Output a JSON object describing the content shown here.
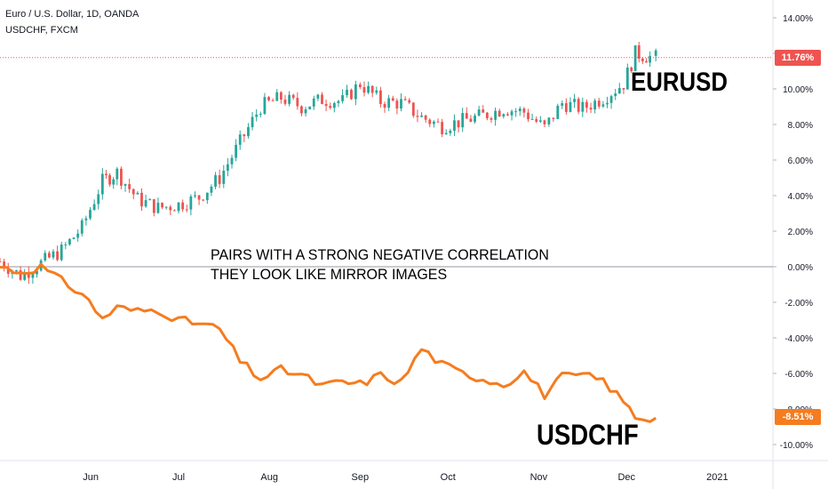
{
  "header": {
    "line1": "Euro / U.S. Dollar, 1D, OANDA",
    "line2": "USDCHF, FXCM"
  },
  "annotations": {
    "eurusd": "EURUSD",
    "usdchf": "USDCHF",
    "caption_line1": "PAIRS WITH A STRONG NEGATIVE CORRELATION",
    "caption_line2": "THEY LOOK LIKE MIRROR IMAGES"
  },
  "price_tags": {
    "eurusd": "11.76%",
    "usdchf": "-8.51%"
  },
  "colors": {
    "up": "#26a69a",
    "down": "#ef5350",
    "usdchf_line": "#f57c1f",
    "eurusd_tag": "#ef5350",
    "usdchf_tag": "#f57c1f",
    "zero_line": "#9598a1"
  },
  "chart_data": {
    "type": "line",
    "title": "Euro / U.S. Dollar, 1D, OANDA",
    "y_unit": "% change",
    "ylim": [
      -11,
      14.5
    ],
    "y_ticks": [
      "14.00%",
      "12.00%",
      "10.00%",
      "8.00%",
      "6.00%",
      "4.00%",
      "2.00%",
      "0.00%",
      "-2.00%",
      "-4.00%",
      "-6.00%",
      "-8.00%",
      "-10.00%"
    ],
    "y_tick_values": [
      14,
      12,
      10,
      8,
      6,
      4,
      2,
      0,
      -2,
      -4,
      -6,
      -8,
      -10
    ],
    "x_ticks": [
      "Jun",
      "Jul",
      "Aug",
      "Sep",
      "Oct",
      "Nov",
      "Dec",
      "2021"
    ],
    "x_tick_dates": [
      "2020-06-01",
      "2020-07-01",
      "2020-08-01",
      "2020-09-01",
      "2020-10-01",
      "2020-11-01",
      "2020-12-01",
      "2021-01-01"
    ],
    "x_range": [
      "2020-05-01",
      "2021-01-20"
    ],
    "grid": false,
    "series": [
      {
        "name": "EURUSD",
        "style": "candlestick",
        "last_value": 11.76,
        "points": [
          [
            "2020-05-01",
            0.3
          ],
          [
            "2020-05-08",
            -0.5
          ],
          [
            "2020-05-15",
            0.2
          ],
          [
            "2020-05-22",
            0.9
          ],
          [
            "2020-05-29",
            2.2
          ],
          [
            "2020-06-05",
            4.8
          ],
          [
            "2020-06-10",
            5.3
          ],
          [
            "2020-06-17",
            3.8
          ],
          [
            "2020-06-24",
            3.3
          ],
          [
            "2020-07-01",
            3.5
          ],
          [
            "2020-07-08",
            3.9
          ],
          [
            "2020-07-15",
            5.0
          ],
          [
            "2020-07-22",
            7.0
          ],
          [
            "2020-07-29",
            9.0
          ],
          [
            "2020-08-05",
            9.5
          ],
          [
            "2020-08-12",
            9.0
          ],
          [
            "2020-08-19",
            9.4
          ],
          [
            "2020-08-26",
            9.3
          ],
          [
            "2020-09-01",
            10.3
          ],
          [
            "2020-09-08",
            9.3
          ],
          [
            "2020-09-15",
            9.2
          ],
          [
            "2020-09-22",
            8.4
          ],
          [
            "2020-09-29",
            7.9
          ],
          [
            "2020-10-06",
            8.2
          ],
          [
            "2020-10-13",
            8.5
          ],
          [
            "2020-10-20",
            8.9
          ],
          [
            "2020-10-27",
            8.7
          ],
          [
            "2020-11-03",
            7.8
          ],
          [
            "2020-11-09",
            9.2
          ],
          [
            "2020-11-16",
            8.9
          ],
          [
            "2020-11-23",
            9.5
          ],
          [
            "2020-11-30",
            10.3
          ],
          [
            "2020-12-04",
            12.0
          ],
          [
            "2020-12-09",
            11.8
          ],
          [
            "2020-12-11",
            11.76
          ]
        ]
      },
      {
        "name": "USDCHF",
        "style": "line",
        "last_value": -8.51,
        "points": [
          [
            "2020-05-01",
            0.0
          ],
          [
            "2020-05-08",
            -0.3
          ],
          [
            "2020-05-15",
            0.0
          ],
          [
            "2020-05-22",
            -0.8
          ],
          [
            "2020-05-29",
            -1.5
          ],
          [
            "2020-06-05",
            -2.9
          ],
          [
            "2020-06-10",
            -2.3
          ],
          [
            "2020-06-17",
            -2.5
          ],
          [
            "2020-06-24",
            -2.4
          ],
          [
            "2020-07-01",
            -3.0
          ],
          [
            "2020-07-08",
            -3.2
          ],
          [
            "2020-07-15",
            -3.5
          ],
          [
            "2020-07-22",
            -5.3
          ],
          [
            "2020-07-29",
            -6.3
          ],
          [
            "2020-08-05",
            -5.8
          ],
          [
            "2020-08-12",
            -6.1
          ],
          [
            "2020-08-19",
            -6.7
          ],
          [
            "2020-08-26",
            -6.5
          ],
          [
            "2020-09-01",
            -6.6
          ],
          [
            "2020-09-08",
            -6.1
          ],
          [
            "2020-09-15",
            -6.5
          ],
          [
            "2020-09-22",
            -4.6
          ],
          [
            "2020-09-29",
            -5.5
          ],
          [
            "2020-10-06",
            -6.0
          ],
          [
            "2020-10-13",
            -6.3
          ],
          [
            "2020-10-20",
            -6.6
          ],
          [
            "2020-10-27",
            -5.9
          ],
          [
            "2020-11-03",
            -7.2
          ],
          [
            "2020-11-09",
            -6.2
          ],
          [
            "2020-11-16",
            -6.1
          ],
          [
            "2020-11-23",
            -6.4
          ],
          [
            "2020-11-30",
            -7.6
          ],
          [
            "2020-12-04",
            -8.4
          ],
          [
            "2020-12-09",
            -8.6
          ],
          [
            "2020-12-11",
            -8.51
          ]
        ]
      }
    ]
  }
}
